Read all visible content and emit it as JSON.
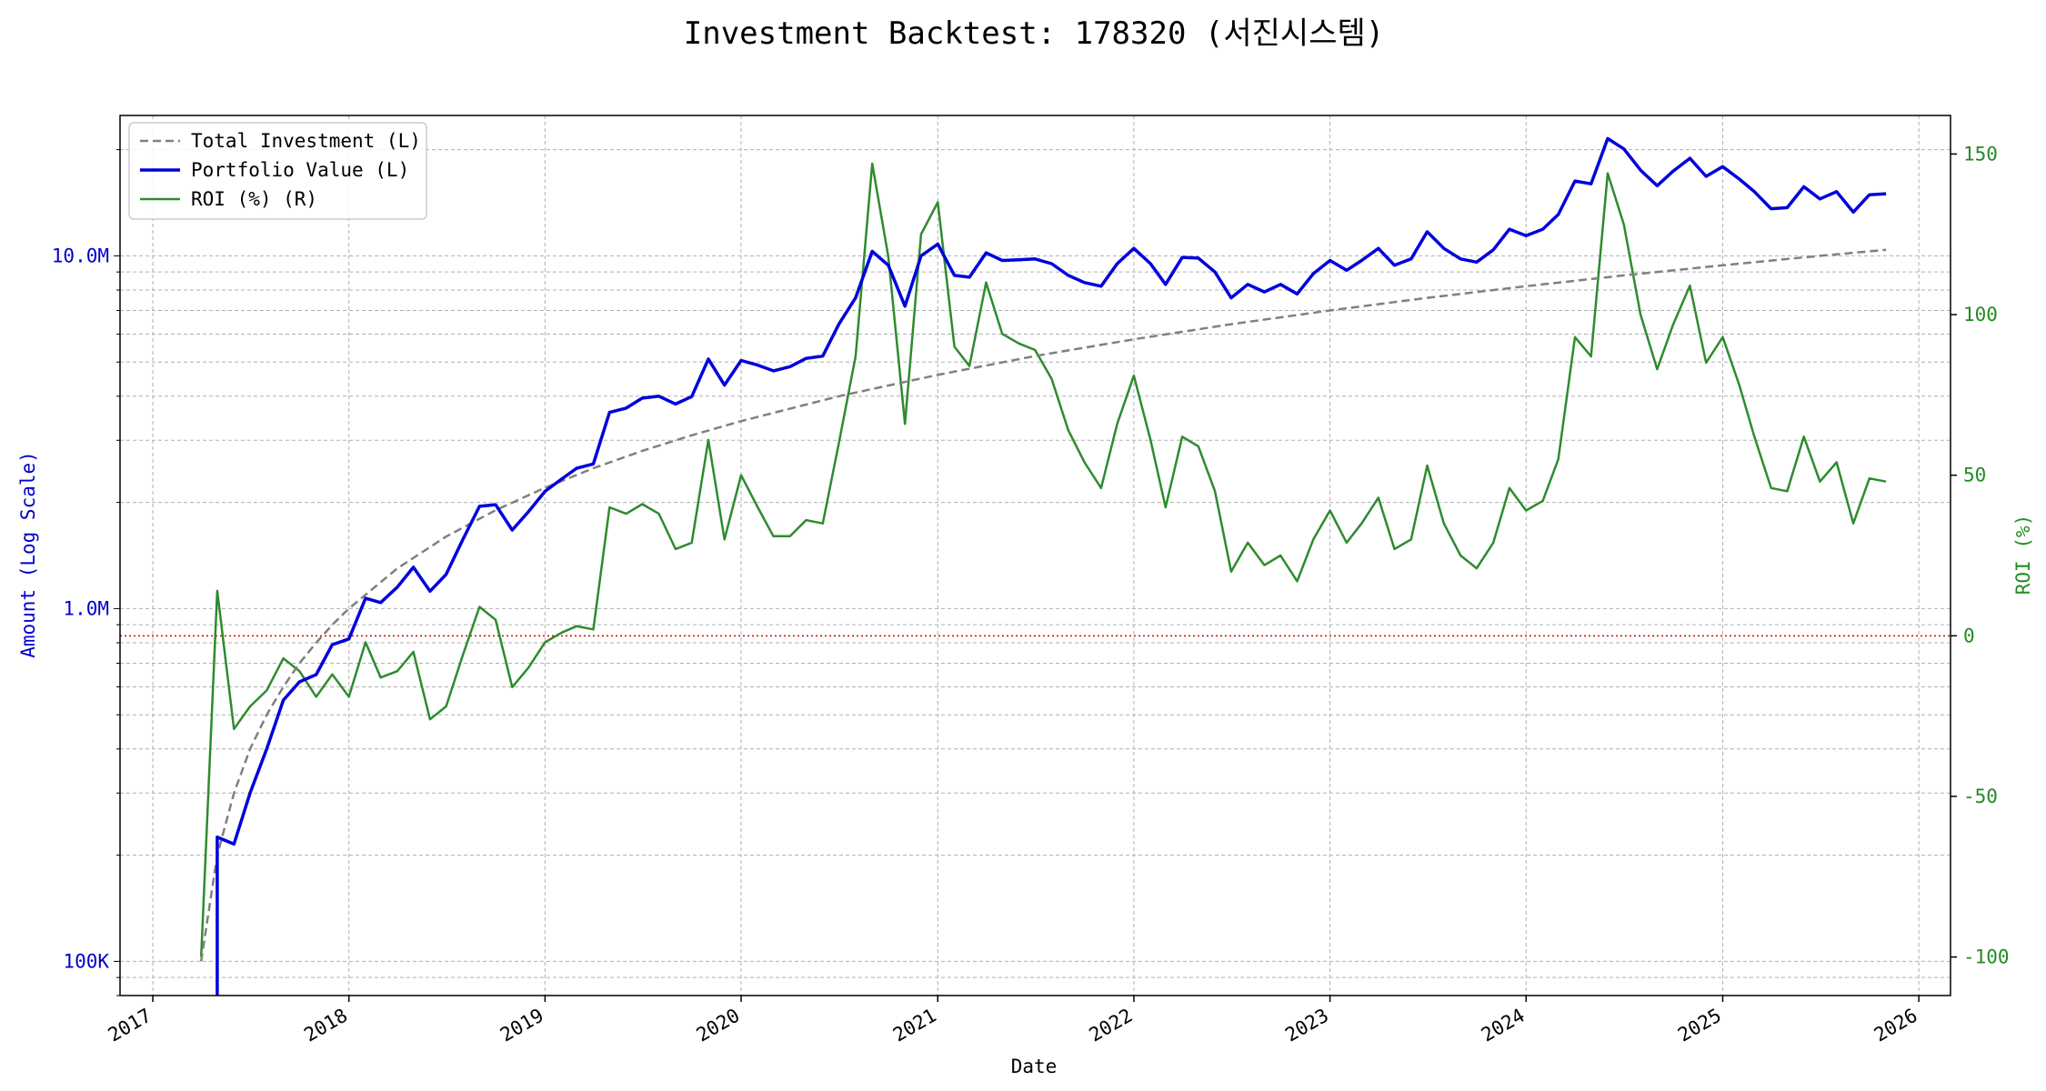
{
  "chart_data": {
    "type": "line",
    "title": "Investment Backtest: 178320 (서진시스템)",
    "xlabel": "Date",
    "ylabel_left": "Amount (Log Scale)",
    "ylabel_right": "ROI (%)",
    "left_axis_scale": "log",
    "ylim_left": [
      80000,
      25000000
    ],
    "ylim_right": [
      -112,
      162
    ],
    "xlim": [
      "2016-11-01",
      "2026-03-01"
    ],
    "x_ticks": [
      "2017",
      "2018",
      "2019",
      "2020",
      "2021",
      "2022",
      "2023",
      "2024",
      "2025",
      "2026"
    ],
    "left_ticks": [
      {
        "value": 100000,
        "label": "100K"
      },
      {
        "value": 1000000,
        "label": "1.0M"
      },
      {
        "value": 10000000,
        "label": "10.0M"
      }
    ],
    "right_ticks": [
      -100,
      -50,
      0,
      50,
      100,
      150
    ],
    "grid": true,
    "legend_position": "top-left",
    "colors": {
      "total": "#808080",
      "portfolio": "#0000dd",
      "roi": "#2e8b2e",
      "zero_line": "#dd0000",
      "left_axis": "#0000cc",
      "right_axis": "#228b22"
    },
    "series": [
      {
        "name": "Total Investment (L)",
        "axis": "left",
        "style": "dashed",
        "points": [
          [
            "2017-04-01",
            100000
          ],
          [
            "2017-05-01",
            200000
          ],
          [
            "2017-06-01",
            300000
          ],
          [
            "2017-07-01",
            400000
          ],
          [
            "2017-08-01",
            500000
          ],
          [
            "2017-09-01",
            600000
          ],
          [
            "2017-10-01",
            700000
          ],
          [
            "2017-11-01",
            800000
          ],
          [
            "2017-12-01",
            900000
          ],
          [
            "2018-01-01",
            1000000
          ],
          [
            "2018-04-01",
            1300000
          ],
          [
            "2018-07-01",
            1600000
          ],
          [
            "2018-10-01",
            1900000
          ],
          [
            "2019-01-01",
            2200000
          ],
          [
            "2019-04-01",
            2500000
          ],
          [
            "2019-07-01",
            2800000
          ],
          [
            "2019-10-01",
            3100000
          ],
          [
            "2020-01-01",
            3400000
          ],
          [
            "2020-07-01",
            4000000
          ],
          [
            "2021-01-01",
            4600000
          ],
          [
            "2021-07-01",
            5200000
          ],
          [
            "2022-01-01",
            5800000
          ],
          [
            "2022-07-01",
            6400000
          ],
          [
            "2023-01-01",
            7000000
          ],
          [
            "2023-07-01",
            7600000
          ],
          [
            "2024-01-01",
            8200000
          ],
          [
            "2024-07-01",
            8800000
          ],
          [
            "2025-01-01",
            9400000
          ],
          [
            "2025-07-01",
            10000000
          ],
          [
            "2025-11-01",
            10400000
          ]
        ]
      },
      {
        "name": "Portfolio Value (L)",
        "axis": "left",
        "style": "solid",
        "points": [
          [
            "2017-05-01",
            80000
          ],
          [
            "2017-05-01",
            225000
          ],
          [
            "2017-06-01",
            215000
          ],
          [
            "2017-07-01",
            300000
          ],
          [
            "2017-08-01",
            400000
          ],
          [
            "2017-09-01",
            550000
          ],
          [
            "2017-10-01",
            620000
          ],
          [
            "2017-11-01",
            650000
          ],
          [
            "2017-12-01",
            790000
          ],
          [
            "2018-01-01",
            820000
          ],
          [
            "2018-02-01",
            1070000
          ],
          [
            "2018-03-01",
            1040000
          ],
          [
            "2018-04-01",
            1150000
          ],
          [
            "2018-05-01",
            1310000
          ],
          [
            "2018-06-01",
            1120000
          ],
          [
            "2018-07-01",
            1250000
          ],
          [
            "2018-08-01",
            1570000
          ],
          [
            "2018-09-01",
            1950000
          ],
          [
            "2018-10-01",
            1970000
          ],
          [
            "2018-11-01",
            1670000
          ],
          [
            "2018-12-01",
            1880000
          ],
          [
            "2019-01-01",
            2150000
          ],
          [
            "2019-02-01",
            2330000
          ],
          [
            "2019-03-01",
            2500000
          ],
          [
            "2019-04-01",
            2570000
          ],
          [
            "2019-05-01",
            3600000
          ],
          [
            "2019-06-01",
            3700000
          ],
          [
            "2019-07-01",
            3950000
          ],
          [
            "2019-08-01",
            4000000
          ],
          [
            "2019-09-01",
            3800000
          ],
          [
            "2019-10-01",
            3990000
          ],
          [
            "2019-11-01",
            5100000
          ],
          [
            "2019-12-01",
            4300000
          ],
          [
            "2020-01-01",
            5050000
          ],
          [
            "2020-02-01",
            4900000
          ],
          [
            "2020-03-01",
            4720000
          ],
          [
            "2020-04-01",
            4850000
          ],
          [
            "2020-05-01",
            5120000
          ],
          [
            "2020-06-01",
            5200000
          ],
          [
            "2020-07-01",
            6400000
          ],
          [
            "2020-08-01",
            7600000
          ],
          [
            "2020-09-01",
            10300000
          ],
          [
            "2020-10-01",
            9400000
          ],
          [
            "2020-11-01",
            7200000
          ],
          [
            "2020-12-01",
            10000000
          ],
          [
            "2021-01-01",
            10800000
          ],
          [
            "2021-02-01",
            8800000
          ],
          [
            "2021-03-01",
            8700000
          ],
          [
            "2021-04-01",
            10200000
          ],
          [
            "2021-05-01",
            9700000
          ],
          [
            "2021-06-01",
            9750000
          ],
          [
            "2021-07-01",
            9800000
          ],
          [
            "2021-08-01",
            9500000
          ],
          [
            "2021-09-01",
            8800000
          ],
          [
            "2021-10-01",
            8400000
          ],
          [
            "2021-11-01",
            8200000
          ],
          [
            "2021-12-01",
            9500000
          ],
          [
            "2022-01-01",
            10500000
          ],
          [
            "2022-02-01",
            9500000
          ],
          [
            "2022-03-01",
            8300000
          ],
          [
            "2022-04-01",
            9900000
          ],
          [
            "2022-05-01",
            9850000
          ],
          [
            "2022-06-01",
            9000000
          ],
          [
            "2022-07-01",
            7600000
          ],
          [
            "2022-08-01",
            8300000
          ],
          [
            "2022-09-01",
            7900000
          ],
          [
            "2022-10-01",
            8300000
          ],
          [
            "2022-11-01",
            7800000
          ],
          [
            "2022-12-01",
            8900000
          ],
          [
            "2023-01-01",
            9700000
          ],
          [
            "2023-02-01",
            9100000
          ],
          [
            "2023-03-01",
            9700000
          ],
          [
            "2023-04-01",
            10500000
          ],
          [
            "2023-05-01",
            9400000
          ],
          [
            "2023-06-01",
            9800000
          ],
          [
            "2023-07-01",
            11700000
          ],
          [
            "2023-08-01",
            10500000
          ],
          [
            "2023-09-01",
            9800000
          ],
          [
            "2023-10-01",
            9600000
          ],
          [
            "2023-11-01",
            10400000
          ],
          [
            "2023-12-01",
            11900000
          ],
          [
            "2024-01-01",
            11400000
          ],
          [
            "2024-02-01",
            11900000
          ],
          [
            "2024-03-01",
            13100000
          ],
          [
            "2024-04-01",
            16300000
          ],
          [
            "2024-05-01",
            16000000
          ],
          [
            "2024-06-01",
            21500000
          ],
          [
            "2024-07-01",
            20100000
          ],
          [
            "2024-08-01",
            17500000
          ],
          [
            "2024-09-01",
            15800000
          ],
          [
            "2024-10-01",
            17400000
          ],
          [
            "2024-11-01",
            18900000
          ],
          [
            "2024-12-01",
            16800000
          ],
          [
            "2025-01-01",
            17900000
          ],
          [
            "2025-02-01",
            16500000
          ],
          [
            "2025-03-01",
            15200000
          ],
          [
            "2025-04-01",
            13600000
          ],
          [
            "2025-05-01",
            13700000
          ],
          [
            "2025-06-01",
            15700000
          ],
          [
            "2025-07-01",
            14500000
          ],
          [
            "2025-08-01",
            15200000
          ],
          [
            "2025-09-01",
            13300000
          ],
          [
            "2025-10-01",
            14900000
          ],
          [
            "2025-11-01",
            15000000
          ]
        ]
      },
      {
        "name": "ROI (%) (R)",
        "axis": "right",
        "style": "solid",
        "points": [
          [
            "2017-04-01",
            -100
          ],
          [
            "2017-05-01",
            14
          ],
          [
            "2017-06-01",
            -29
          ],
          [
            "2017-07-01",
            -22
          ],
          [
            "2017-08-01",
            -17
          ],
          [
            "2017-09-01",
            -7
          ],
          [
            "2017-10-01",
            -11
          ],
          [
            "2017-11-01",
            -19
          ],
          [
            "2017-12-01",
            -12
          ],
          [
            "2018-01-01",
            -19
          ],
          [
            "2018-02-01",
            -2
          ],
          [
            "2018-03-01",
            -13
          ],
          [
            "2018-04-01",
            -11
          ],
          [
            "2018-05-01",
            -5
          ],
          [
            "2018-06-01",
            -26
          ],
          [
            "2018-07-01",
            -22
          ],
          [
            "2018-08-01",
            -6
          ],
          [
            "2018-09-01",
            9
          ],
          [
            "2018-10-01",
            5
          ],
          [
            "2018-11-01",
            -16
          ],
          [
            "2018-12-01",
            -10
          ],
          [
            "2019-01-01",
            -2
          ],
          [
            "2019-02-01",
            1
          ],
          [
            "2019-03-01",
            3
          ],
          [
            "2019-04-01",
            2
          ],
          [
            "2019-05-01",
            40
          ],
          [
            "2019-06-01",
            38
          ],
          [
            "2019-07-01",
            41
          ],
          [
            "2019-08-01",
            38
          ],
          [
            "2019-09-01",
            27
          ],
          [
            "2019-10-01",
            29
          ],
          [
            "2019-11-01",
            61
          ],
          [
            "2019-12-01",
            30
          ],
          [
            "2020-01-01",
            50
          ],
          [
            "2020-02-01",
            40
          ],
          [
            "2020-03-01",
            31
          ],
          [
            "2020-04-01",
            31
          ],
          [
            "2020-05-01",
            36
          ],
          [
            "2020-06-01",
            35
          ],
          [
            "2020-07-01",
            60
          ],
          [
            "2020-08-01",
            87
          ],
          [
            "2020-09-01",
            147
          ],
          [
            "2020-10-01",
            118
          ],
          [
            "2020-11-01",
            66
          ],
          [
            "2020-12-01",
            125
          ],
          [
            "2021-01-01",
            135
          ],
          [
            "2021-02-01",
            90
          ],
          [
            "2021-03-01",
            84
          ],
          [
            "2021-04-01",
            110
          ],
          [
            "2021-05-01",
            94
          ],
          [
            "2021-06-01",
            91
          ],
          [
            "2021-07-01",
            89
          ],
          [
            "2021-08-01",
            80
          ],
          [
            "2021-09-01",
            64
          ],
          [
            "2021-10-01",
            54
          ],
          [
            "2021-11-01",
            46
          ],
          [
            "2021-12-01",
            66
          ],
          [
            "2022-01-01",
            81
          ],
          [
            "2022-02-01",
            61
          ],
          [
            "2022-03-01",
            40
          ],
          [
            "2022-04-01",
            62
          ],
          [
            "2022-05-01",
            59
          ],
          [
            "2022-06-01",
            45
          ],
          [
            "2022-07-01",
            20
          ],
          [
            "2022-08-01",
            29
          ],
          [
            "2022-09-01",
            22
          ],
          [
            "2022-10-01",
            25
          ],
          [
            "2022-11-01",
            17
          ],
          [
            "2022-12-01",
            30
          ],
          [
            "2023-01-01",
            39
          ],
          [
            "2023-02-01",
            29
          ],
          [
            "2023-03-01",
            35
          ],
          [
            "2023-04-01",
            43
          ],
          [
            "2023-05-01",
            27
          ],
          [
            "2023-06-01",
            30
          ],
          [
            "2023-07-01",
            53
          ],
          [
            "2023-08-01",
            35
          ],
          [
            "2023-09-01",
            25
          ],
          [
            "2023-10-01",
            21
          ],
          [
            "2023-11-01",
            29
          ],
          [
            "2023-12-01",
            46
          ],
          [
            "2024-01-01",
            39
          ],
          [
            "2024-02-01",
            42
          ],
          [
            "2024-03-01",
            55
          ],
          [
            "2024-04-01",
            93
          ],
          [
            "2024-05-01",
            87
          ],
          [
            "2024-06-01",
            144
          ],
          [
            "2024-07-01",
            128
          ],
          [
            "2024-08-01",
            100
          ],
          [
            "2024-09-01",
            83
          ],
          [
            "2024-10-01",
            97
          ],
          [
            "2024-11-01",
            109
          ],
          [
            "2024-12-01",
            85
          ],
          [
            "2025-01-01",
            93
          ],
          [
            "2025-02-01",
            78
          ],
          [
            "2025-03-01",
            62
          ],
          [
            "2025-04-01",
            46
          ],
          [
            "2025-05-01",
            45
          ],
          [
            "2025-06-01",
            62
          ],
          [
            "2025-07-01",
            48
          ],
          [
            "2025-08-01",
            54
          ],
          [
            "2025-09-01",
            35
          ],
          [
            "2025-10-01",
            49
          ],
          [
            "2025-11-01",
            48
          ]
        ]
      }
    ],
    "reference_lines": [
      {
        "axis": "right",
        "value": 0,
        "style": "dotted"
      }
    ]
  }
}
